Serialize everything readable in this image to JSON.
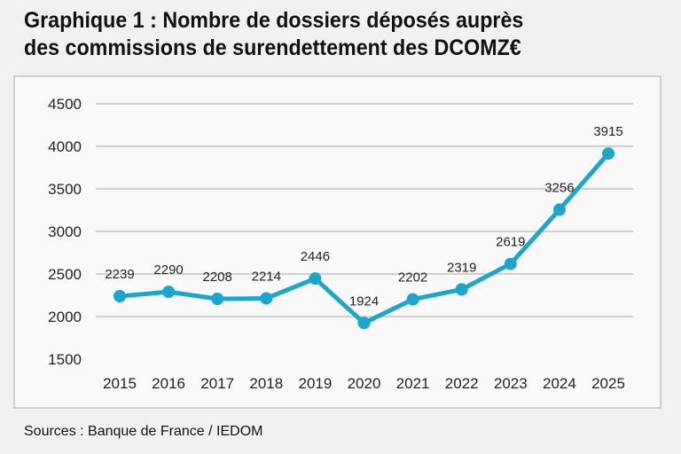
{
  "chart_data": {
    "type": "line",
    "title": "Graphique 1 : Nombre de dossiers déposés auprès des commissions de surendettement des DCOMZ€",
    "title_lines": [
      "Graphique 1 : Nombre de dossiers déposés auprès",
      "des commissions de surendettement des DCOMZ€"
    ],
    "x": [
      "2015",
      "2016",
      "2017",
      "2018",
      "2019",
      "2020",
      "2021",
      "2022",
      "2023",
      "2024",
      "2025"
    ],
    "values": [
      2239,
      2290,
      2208,
      2214,
      2446,
      1924,
      2202,
      2319,
      2619,
      3256,
      3915
    ],
    "ylim": [
      1500,
      4500
    ],
    "yticks": [
      1500,
      2000,
      2500,
      3000,
      3500,
      4000,
      4500
    ],
    "xlabel": "",
    "ylabel": "",
    "grid": "horizontal",
    "legend": "none",
    "data_labels": true,
    "colors": {
      "line": "#1ba6cc",
      "grid": "#c4c4c4",
      "text": "#222222"
    }
  },
  "source": "Sources : Banque de France / IEDOM"
}
